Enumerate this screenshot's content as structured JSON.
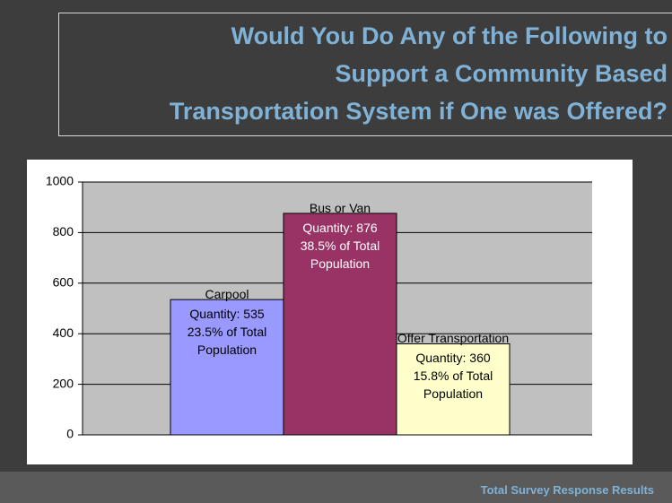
{
  "chart_data": {
    "type": "bar",
    "title_lines": [
      "Would You Do Any of the Following to",
      "Support a Community Based",
      "Transportation System if One was Offered?"
    ],
    "footer": "Total Survey Response Results",
    "categories": [
      "Carpool",
      "Bus or Van",
      "Offer Transportation"
    ],
    "values": [
      535,
      876,
      360
    ],
    "value_labels": [
      "Quantity: 535",
      "Quantity: 876",
      "Quantity: 360"
    ],
    "share_labels": [
      "23.5% of Total Population",
      "38.5% of Total Population",
      "15.8% of Total Population"
    ],
    "colors": [
      "#9999ff",
      "#993366",
      "#ffffcc"
    ],
    "label_colors": [
      "#000000",
      "#ffffff",
      "#000000"
    ],
    "ylim": [
      0,
      1000
    ],
    "yticks": [
      0,
      200,
      400,
      600,
      800,
      1000
    ],
    "grid": true
  }
}
